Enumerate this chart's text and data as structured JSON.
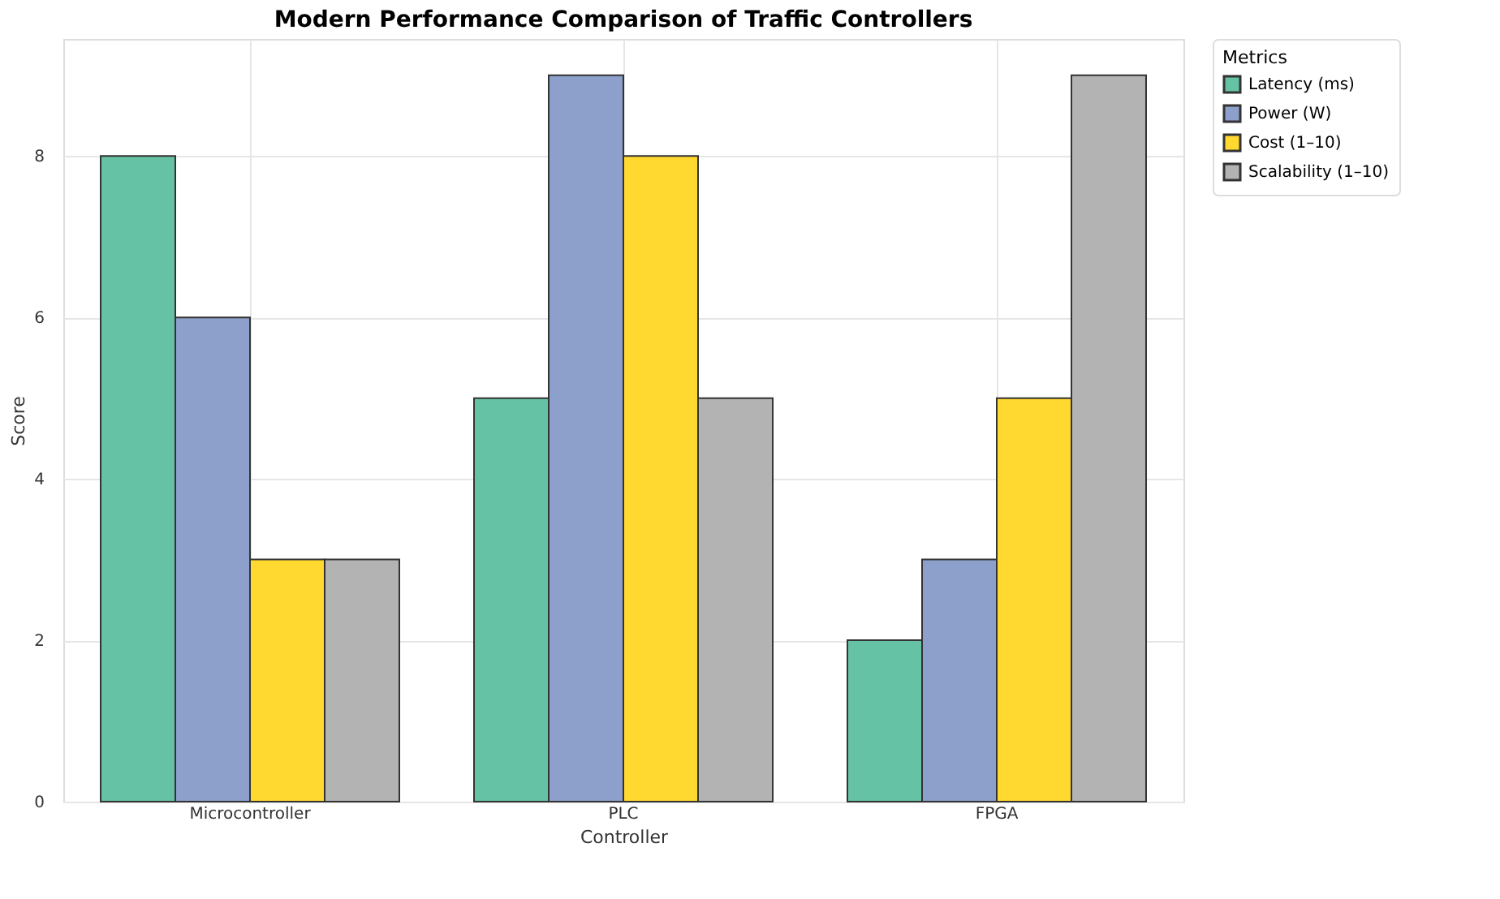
{
  "chart_data": {
    "type": "bar",
    "title": "Modern Performance Comparison of Traffic Controllers",
    "xlabel": "Controller",
    "ylabel": "Score",
    "legend_title": "Metrics",
    "categories": [
      "Microcontroller",
      "PLC",
      "FPGA"
    ],
    "series": [
      {
        "name": "Latency (ms)",
        "color": "#66c2a5",
        "values": [
          8,
          5,
          2
        ]
      },
      {
        "name": "Power (W)",
        "color": "#8da0cb",
        "values": [
          6,
          9,
          3
        ]
      },
      {
        "name": "Cost (1–10)",
        "color": "#ffd92f",
        "values": [
          3,
          8,
          5
        ]
      },
      {
        "name": "Scalability (1–10)",
        "color": "#b3b3b3",
        "values": [
          3,
          5,
          9
        ]
      }
    ],
    "ylim": [
      0,
      9.45
    ],
    "yticks": [
      0,
      2,
      4,
      6,
      8
    ],
    "grid": true,
    "legend": "top right"
  }
}
